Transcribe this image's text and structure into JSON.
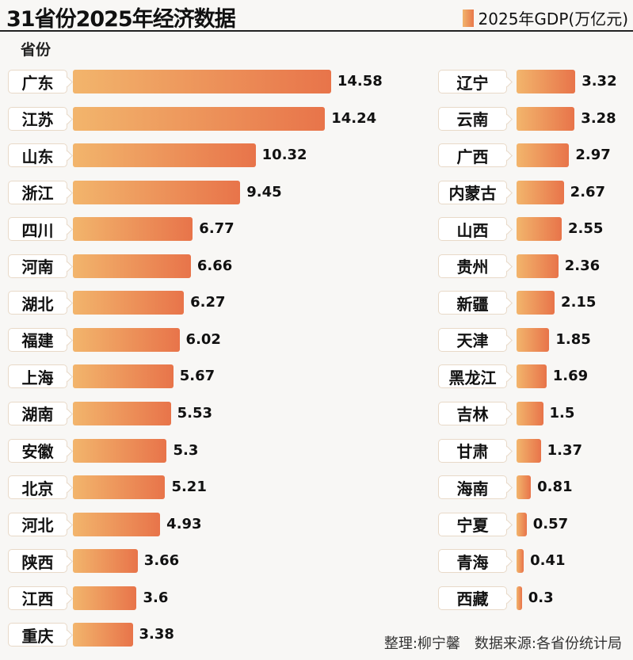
{
  "chart_data": {
    "type": "bar",
    "orientation": "horizontal",
    "title": "31省份2025年经济数据",
    "category_header": "省份",
    "legend": "2025年GDP(万亿元)",
    "legend_position": "top-right",
    "colors": {
      "bar_start": "#f2b56c",
      "bar_end": "#e8744a"
    },
    "categories": [
      "广东",
      "江苏",
      "山东",
      "浙江",
      "四川",
      "河南",
      "湖北",
      "福建",
      "上海",
      "湖南",
      "安徽",
      "北京",
      "河北",
      "陕西",
      "江西",
      "重庆",
      "辽宁",
      "云南",
      "广西",
      "内蒙古",
      "山西",
      "贵州",
      "新疆",
      "天津",
      "黑龙江",
      "吉林",
      "甘肃",
      "海南",
      "宁夏",
      "青海",
      "西藏"
    ],
    "values": [
      14.58,
      14.24,
      10.32,
      9.45,
      6.77,
      6.66,
      6.27,
      6.02,
      5.67,
      5.53,
      5.3,
      5.21,
      4.93,
      3.66,
      3.6,
      3.38,
      3.32,
      3.28,
      2.97,
      2.67,
      2.55,
      2.36,
      2.15,
      1.85,
      1.69,
      1.5,
      1.37,
      0.81,
      0.57,
      0.41,
      0.3
    ],
    "value_labels": [
      "14.58",
      "14.24",
      "10.32",
      "9.45",
      "6.77",
      "6.66",
      "6.27",
      "6.02",
      "5.67",
      "5.53",
      "5.3",
      "5.21",
      "4.93",
      "3.66",
      "3.6",
      "3.38",
      "3.32",
      "3.28",
      "2.97",
      "2.67",
      "2.55",
      "2.36",
      "2.15",
      "1.85",
      "1.69",
      "1.5",
      "1.37",
      "0.81",
      "0.57",
      "0.41",
      "0.3"
    ]
  },
  "footer": "整理:柳宁馨　数据来源:各省份统计局"
}
